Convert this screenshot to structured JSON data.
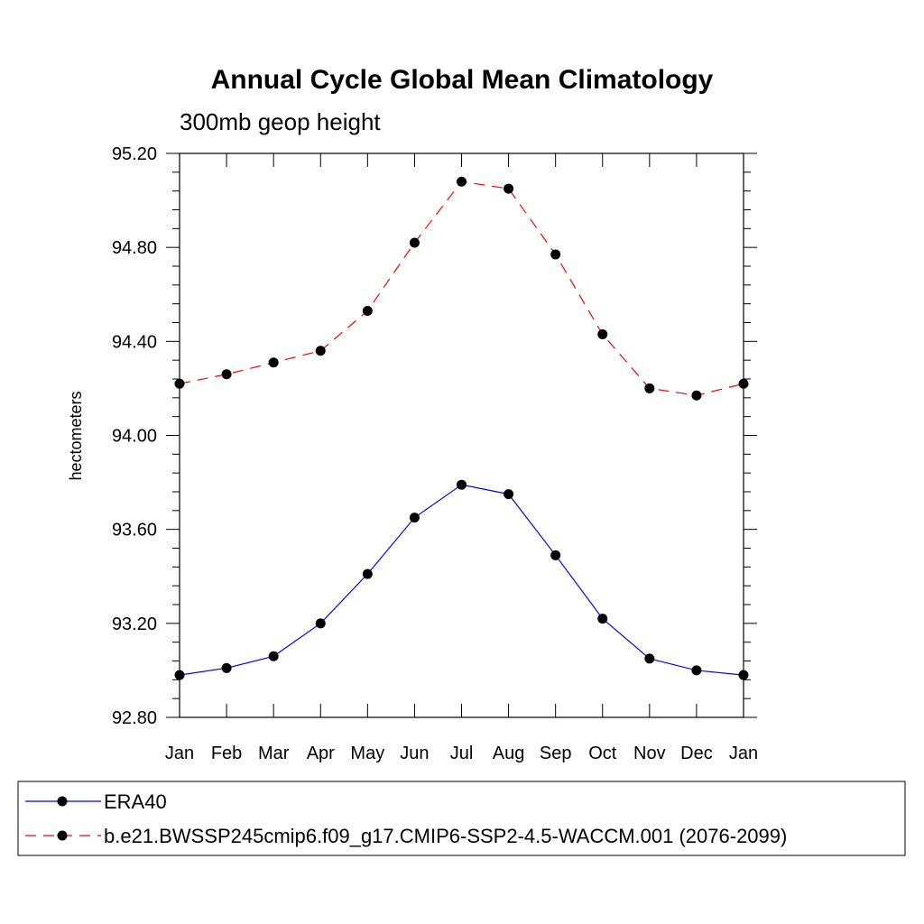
{
  "chart_data": {
    "type": "line",
    "title": "Annual Cycle Global Mean Climatology",
    "subtitle": "300mb geop height",
    "xlabel": "",
    "ylabel": "hectometers",
    "categories": [
      "Jan",
      "Feb",
      "Mar",
      "Apr",
      "May",
      "Jun",
      "Jul",
      "Aug",
      "Sep",
      "Oct",
      "Nov",
      "Dec",
      "Jan"
    ],
    "ylim": [
      92.8,
      95.2
    ],
    "yticks": [
      "92.80",
      "93.20",
      "93.60",
      "94.00",
      "94.40",
      "94.80",
      "95.20"
    ],
    "grid": false,
    "legend_position": "bottom",
    "series": [
      {
        "name": "ERA40",
        "color": "#0000ff",
        "line_style": "solid",
        "marker": "filled-circle",
        "values": [
          92.98,
          93.01,
          93.06,
          93.2,
          93.41,
          93.65,
          93.79,
          93.75,
          93.49,
          93.22,
          93.05,
          93.0,
          92.98
        ]
      },
      {
        "name": "b.e21.BWSSP245cmip6.f09_g17.CMIP6-SSP2-4.5-WACCM.001 (2076-2099)",
        "color": "#ff0000",
        "line_style": "dashed",
        "marker": "filled-circle",
        "values": [
          94.22,
          94.26,
          94.31,
          94.36,
          94.53,
          94.82,
          95.08,
          95.05,
          94.77,
          94.43,
          94.2,
          94.17,
          94.22
        ]
      }
    ]
  }
}
